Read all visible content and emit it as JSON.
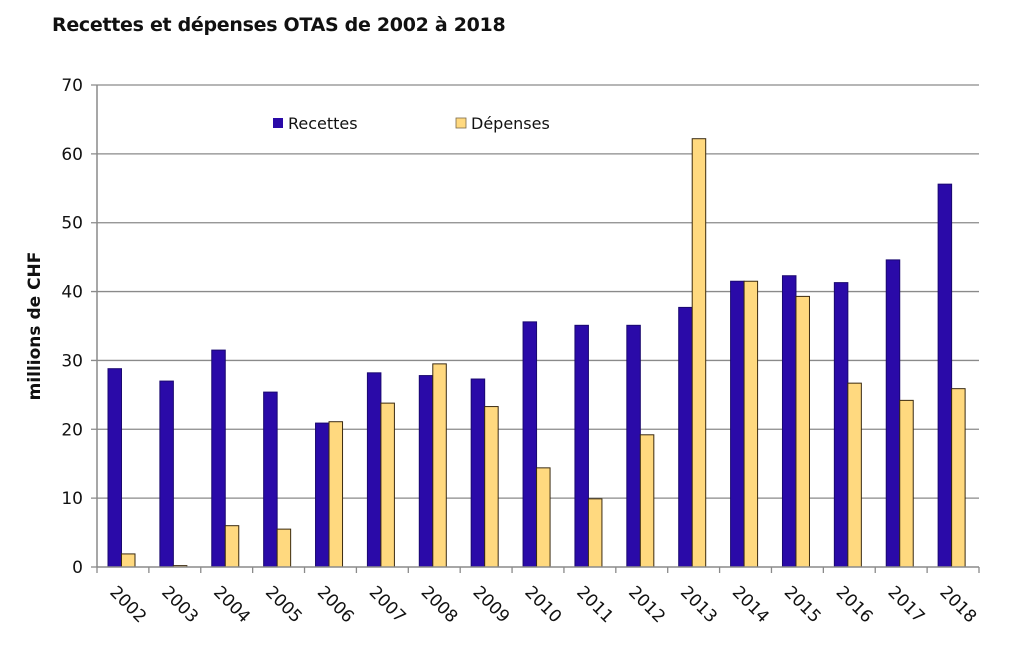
{
  "chart_data": {
    "type": "bar",
    "title": "Recettes et dépenses OTAS de 2002 à 2018",
    "xlabel": "",
    "ylabel": "millions de CHF",
    "ylim": [
      0,
      70
    ],
    "yticks": [
      0,
      10,
      20,
      30,
      40,
      50,
      60,
      70
    ],
    "grid": true,
    "legend_position": "top-center",
    "categories": [
      "2002",
      "2003",
      "2004",
      "2005",
      "2006",
      "2007",
      "2008",
      "2009",
      "2010",
      "2011",
      "2012",
      "2013",
      "2014",
      "2015",
      "2016",
      "2017",
      "2018"
    ],
    "series": [
      {
        "name": "Recettes",
        "color": "#2a0aa8",
        "values": [
          28.8,
          27.0,
          31.5,
          25.4,
          20.9,
          28.2,
          27.8,
          27.3,
          35.6,
          35.1,
          35.1,
          37.7,
          41.5,
          42.3,
          41.3,
          44.6,
          55.6
        ]
      },
      {
        "name": "Dépenses",
        "color": "#ffd97f",
        "values": [
          1.9,
          0.2,
          6.0,
          5.5,
          21.1,
          23.8,
          29.5,
          23.3,
          14.4,
          9.9,
          19.2,
          62.2,
          41.5,
          39.3,
          26.7,
          24.2,
          25.9
        ]
      }
    ]
  }
}
